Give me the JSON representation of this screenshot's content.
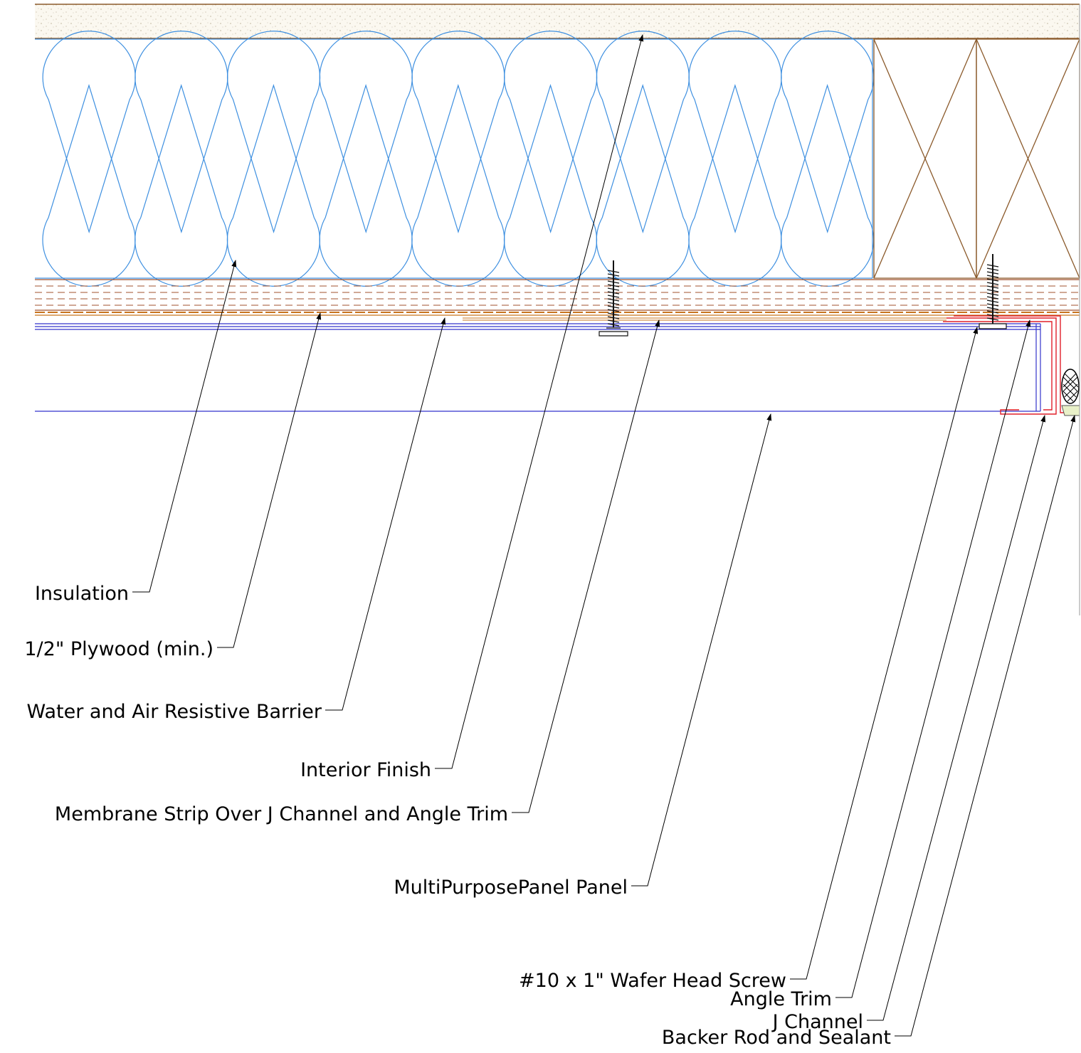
{
  "labels": {
    "insulation": "Insulation",
    "plywood": "1/2\" Plywood (min.)",
    "barrier": "Water and Air Resistive Barrier",
    "interior_finish": "Interior Finish",
    "membrane": "Membrane Strip Over J Channel and Angle Trim",
    "panel": "MultiPurposePanel Panel",
    "screw": "#10 x 1\" Wafer Head Screw",
    "angle_trim": "Angle Trim",
    "j_channel": "J Channel",
    "backer_rod": "Backer Rod and Sealant"
  },
  "colors": {
    "insulation": "#3d8fe0",
    "wood": "#8b5a2b",
    "finish_fill": "#f7f3ea",
    "sheathing_line": "#a0522d",
    "barrier": "#c8741f",
    "panel": "#3333cc",
    "trim": "#e0202a",
    "screw": "#111111",
    "leader": "#000000"
  }
}
